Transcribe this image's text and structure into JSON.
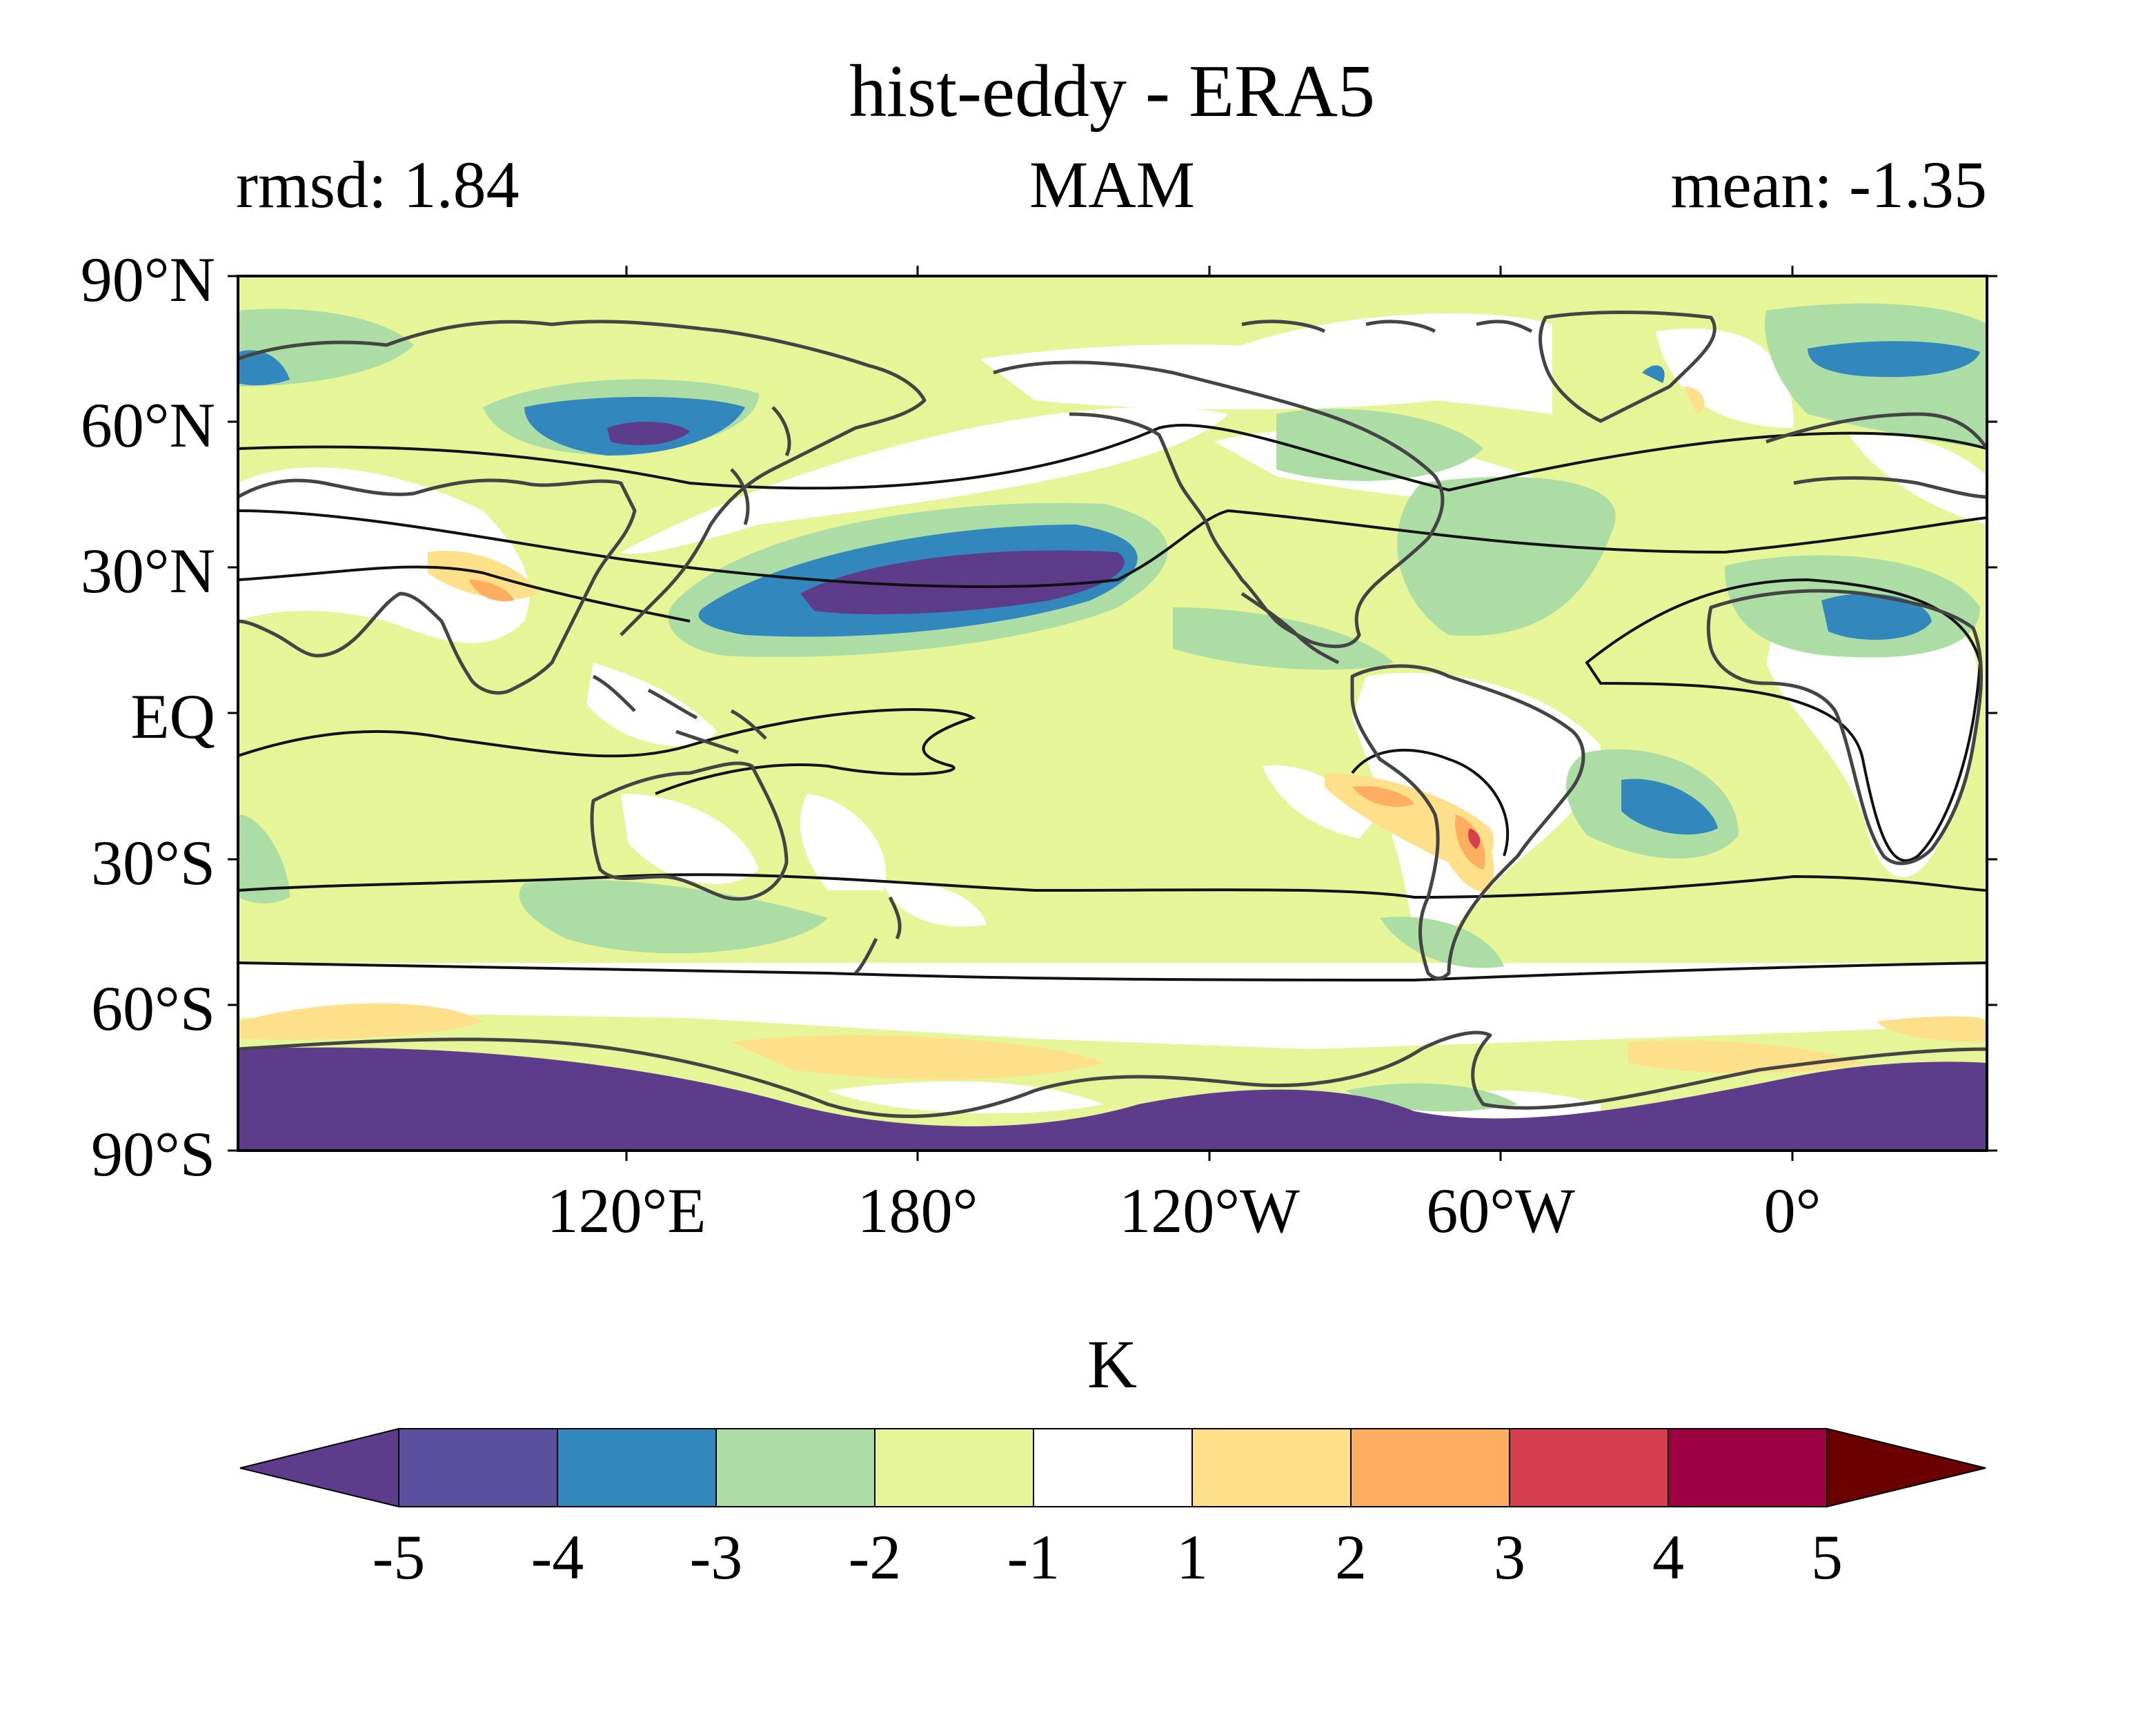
{
  "figure": {
    "title": "hist-eddy - ERA5",
    "left_label": "rmsd: 1.84",
    "center_label": "MAM",
    "right_label": "mean: -1.35"
  },
  "map": {
    "projection": "cylindrical equidistant, central longitude 180° shifted",
    "lat_ticks": [
      "90°N",
      "60°N",
      "30°N",
      "EQ",
      "30°S",
      "60°S",
      "90°S"
    ],
    "lon_ticks": [
      "120°E",
      "180°",
      "120°W",
      "60°W",
      "0°"
    ]
  },
  "colorbar": {
    "units": "K",
    "tick_labels": [
      "-5",
      "-4",
      "-3",
      "-2",
      "-1",
      "1",
      "2",
      "3",
      "4",
      "5"
    ],
    "colors": {
      "under": "#5e3c8c",
      "bins": [
        "#5b4fa0",
        "#3288bd",
        "#abdda4",
        "#e6f598",
        "#ffffff",
        "#fee08b",
        "#fdae61",
        "#d53e4f",
        "#9e0142"
      ],
      "over": "#6b0000"
    }
  },
  "palette": {
    "p_m45": "#5e3c8c",
    "p_m4": "#3288bd",
    "p_m3": "#abdda4",
    "p_m2": "#e6f598",
    "p_w": "#ffffff",
    "p_1": "#fee08b",
    "p_2": "#fdae61",
    "p_3": "#d53e4f",
    "coast": "#444444",
    "contour": "#111111"
  }
}
